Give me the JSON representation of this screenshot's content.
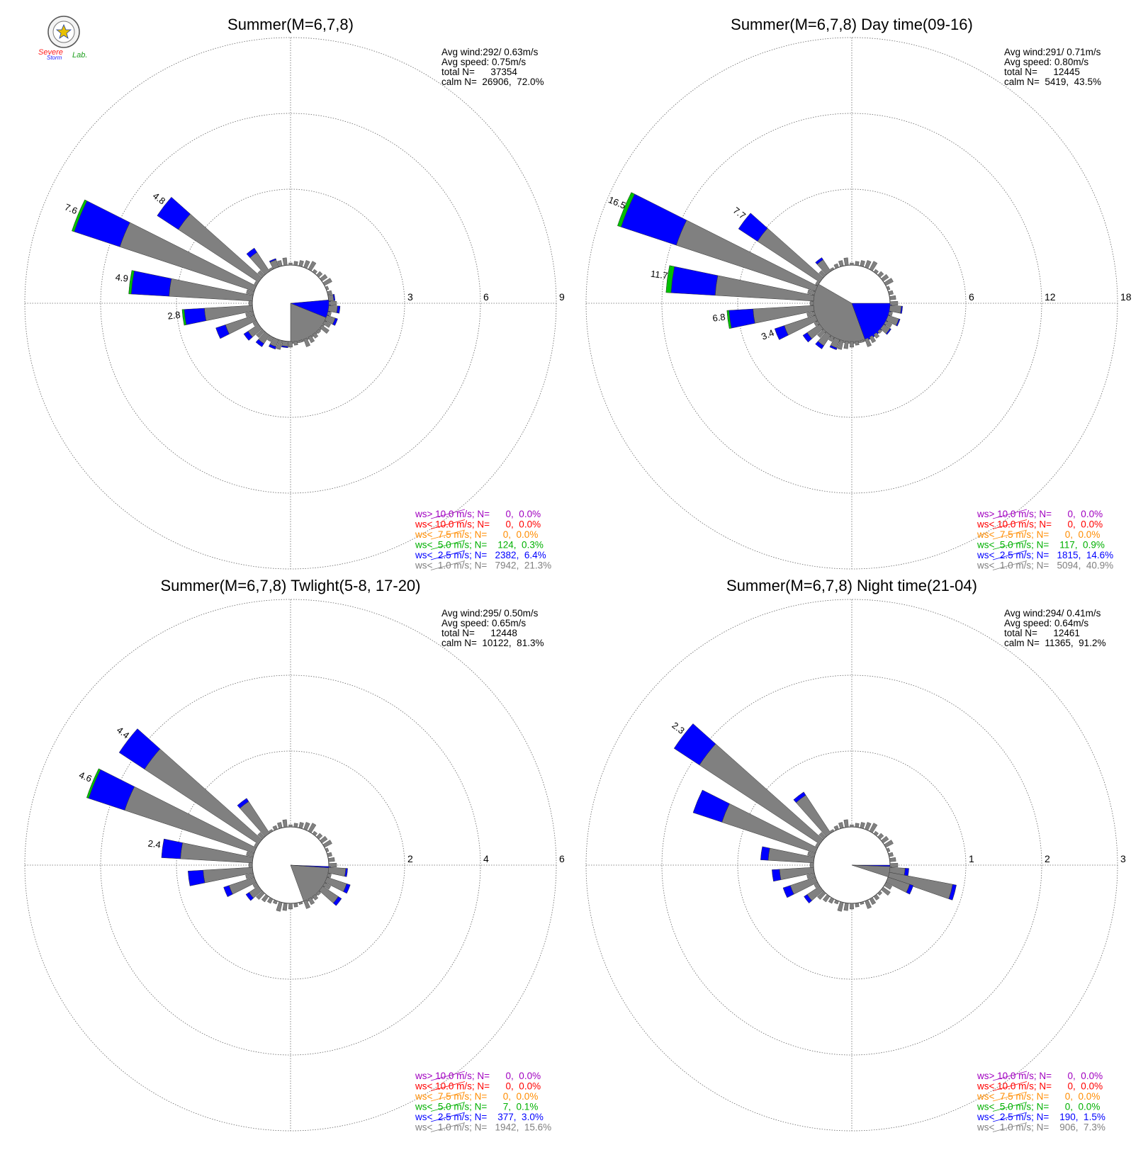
{
  "logo": {
    "lab_text_1": "Severe",
    "lab_text_2": "Storm",
    "lab_text_3": "Lab."
  },
  "colors": {
    "calm": "#808080",
    "ws1": "#808080",
    "ws2": "#0000ff",
    "ws3": "#00c000",
    "ws4": "#ff8c00",
    "ws5": "#ff0000",
    "ws6": "#a000c0"
  },
  "chart_data": [
    {
      "type": "windrose",
      "title": "Summer(M=6,7,8)",
      "stats": [
        "Avg wind:292/ 0.63m/s",
        "Avg speed: 0.75m/s",
        "total N=      37354",
        "calm N=  26906,  72.0%"
      ],
      "ring_labels": [
        "3",
        "6",
        "9"
      ],
      "rmax": 9,
      "calm_sector": [
        95,
        180
      ],
      "calm_sector_value": 1.5,
      "sectors": [
        {
          "dir": 292.5,
          "gray": 5.6,
          "blue": 1.9,
          "green": 0.1,
          "label": "7.6"
        },
        {
          "dir": 307.5,
          "gray": 3.8,
          "blue": 1.0,
          "label": "4.8"
        },
        {
          "dir": 277.5,
          "gray": 3.3,
          "blue": 1.5,
          "green": 0.1,
          "label": "4.9"
        },
        {
          "dir": 262.5,
          "gray": 1.9,
          "blue": 0.8,
          "green": 0.05,
          "label": "2.8"
        },
        {
          "dir": 322.5,
          "gray": 0.9,
          "blue": 0.2
        },
        {
          "dir": 247.5,
          "gray": 1.2,
          "blue": 0.4
        },
        {
          "dir": 232.5,
          "gray": 0.5,
          "blue": 0.2
        },
        {
          "dir": 217.5,
          "gray": 0.4,
          "blue": 0.15
        },
        {
          "dir": 337.5,
          "gray": 0.3,
          "blue": 0.05
        },
        {
          "dir": 82.5,
          "gray": 0.2,
          "blue": 0.05
        },
        {
          "dir": 97.5,
          "gray": 0.35,
          "blue": 0.1
        },
        {
          "dir": 112.5,
          "gray": 0.35,
          "blue": 0.1
        },
        {
          "dir": 202.5,
          "gray": 0.3,
          "blue": 0.1
        },
        {
          "dir": 187.5,
          "gray": 0.2,
          "blue": 0.05
        }
      ],
      "legend": [
        {
          "prefix": "ws>",
          "speed": "10.0 m/s; N=",
          "count": "0",
          "pct": "0.0%",
          "color": "#a000c0"
        },
        {
          "prefix": "ws<",
          "speed": "10.0 m/s; N=",
          "count": "0",
          "pct": "0.0%",
          "color": "#ff0000"
        },
        {
          "prefix": "ws<",
          "speed": " 7.5 m/s; N=",
          "count": "0",
          "pct": "0.0%",
          "color": "#ff8c00"
        },
        {
          "prefix": "ws<",
          "speed": " 5.0 m/s; N=",
          "count": "124",
          "pct": "0.3%",
          "color": "#00b000"
        },
        {
          "prefix": "ws<",
          "speed": " 2.5 m/s; N=",
          "count": "2382",
          "pct": "6.4%",
          "color": "#0000ff"
        },
        {
          "prefix": "ws<",
          "speed": " 1.0 m/s; N=",
          "count": "7942",
          "pct": "21.3%",
          "color": "#808080"
        }
      ]
    },
    {
      "type": "windrose",
      "title": "Summer(M=6,7,8) Day time(09-16)",
      "stats": [
        "Avg wind:291/ 0.71m/s",
        "Avg speed: 0.80m/s",
        "total N=      12445",
        "calm N=  5419,  43.5%"
      ],
      "ring_labels": [
        "6",
        "12",
        "18"
      ],
      "rmax": 18,
      "calm_sector": [
        90,
        160
      ],
      "calm_sector_value": 3.6,
      "calm_gray_sector": [
        160,
        300
      ],
      "calm_gray_value": 3.6,
      "sectors": [
        {
          "dir": 292.5,
          "gray": 11.6,
          "blue": 4.6,
          "green": 0.3,
          "label": "16.5"
        },
        {
          "dir": 307.5,
          "gray": 5.9,
          "blue": 1.8,
          "label": "7.7"
        },
        {
          "dir": 277.5,
          "gray": 7.8,
          "blue": 3.5,
          "green": 0.4,
          "label": "11.7"
        },
        {
          "dir": 262.5,
          "gray": 4.8,
          "blue": 1.9,
          "green": 0.1,
          "label": "6.8"
        },
        {
          "dir": 247.5,
          "gray": 2.6,
          "blue": 0.8,
          "label": "3.4"
        },
        {
          "dir": 322.5,
          "gray": 1.1,
          "blue": 0.2
        },
        {
          "dir": 232.5,
          "gray": 1.2,
          "blue": 0.4
        },
        {
          "dir": 217.5,
          "gray": 1.0,
          "blue": 0.3
        },
        {
          "dir": 202.5,
          "gray": 0.7,
          "blue": 0.15
        },
        {
          "dir": 97.5,
          "gray": 0.9,
          "blue": 0.1
        },
        {
          "dir": 112.5,
          "gray": 0.9,
          "blue": 0.1
        },
        {
          "dir": 127.5,
          "gray": 0.6,
          "blue": 0.1
        }
      ],
      "legend": [
        {
          "prefix": "ws>",
          "speed": "10.0 m/s; N=",
          "count": "0",
          "pct": "0.0%",
          "color": "#a000c0"
        },
        {
          "prefix": "ws<",
          "speed": "10.0 m/s; N=",
          "count": "0",
          "pct": "0.0%",
          "color": "#ff0000"
        },
        {
          "prefix": "ws<",
          "speed": " 7.5 m/s; N=",
          "count": "0",
          "pct": "0.0%",
          "color": "#ff8c00"
        },
        {
          "prefix": "ws<",
          "speed": " 5.0 m/s; N=",
          "count": "117",
          "pct": "0.9%",
          "color": "#00b000"
        },
        {
          "prefix": "ws<",
          "speed": " 2.5 m/s; N=",
          "count": "1815",
          "pct": "14.6%",
          "color": "#0000ff"
        },
        {
          "prefix": "ws<",
          "speed": " 1.0 m/s; N=",
          "count": "5094",
          "pct": "40.9%",
          "color": "#808080"
        }
      ]
    },
    {
      "type": "windrose",
      "title": "Summer(M=6,7,8) Twlight(5-8, 17-20)",
      "stats": [
        "Avg wind:295/ 0.50m/s",
        "Avg speed: 0.65m/s",
        "total N=      12448",
        "calm N=  10122,  81.3%"
      ],
      "ring_labels": [
        "2",
        "4",
        "6"
      ],
      "rmax": 6,
      "calm_sector": [
        92,
        94
      ],
      "calm_sector_value": 1.0,
      "calm_gray_sector": [
        94,
        160
      ],
      "calm_gray_value": 1.0,
      "sectors": [
        {
          "dir": 307.5,
          "gray": 3.6,
          "blue": 0.8,
          "label": "4.4"
        },
        {
          "dir": 292.5,
          "gray": 3.6,
          "blue": 1.0,
          "green": 0.05,
          "label": "4.6"
        },
        {
          "dir": 277.5,
          "gray": 1.9,
          "blue": 0.5,
          "label": "2.4"
        },
        {
          "dir": 262.5,
          "gray": 1.3,
          "blue": 0.4
        },
        {
          "dir": 322.5,
          "gray": 1.0,
          "blue": 0.1
        },
        {
          "dir": 247.5,
          "gray": 0.7,
          "blue": 0.15
        },
        {
          "dir": 232.5,
          "gray": 0.3,
          "blue": 0.1
        },
        {
          "dir": 97.5,
          "gray": 0.45,
          "blue": 0.05
        },
        {
          "dir": 112.5,
          "gray": 0.55,
          "blue": 0.1
        },
        {
          "dir": 127.5,
          "gray": 0.5,
          "blue": 0.1
        }
      ],
      "legend": [
        {
          "prefix": "ws>",
          "speed": "10.0 m/s; N=",
          "count": "0",
          "pct": "0.0%",
          "color": "#a000c0"
        },
        {
          "prefix": "ws<",
          "speed": "10.0 m/s; N=",
          "count": "0",
          "pct": "0.0%",
          "color": "#ff0000"
        },
        {
          "prefix": "ws<",
          "speed": " 7.5 m/s; N=",
          "count": "0",
          "pct": "0.0%",
          "color": "#ff8c00"
        },
        {
          "prefix": "ws<",
          "speed": " 5.0 m/s; N=",
          "count": "7",
          "pct": "0.1%",
          "color": "#00b000"
        },
        {
          "prefix": "ws<",
          "speed": " 2.5 m/s; N=",
          "count": "377",
          "pct": "3.0%",
          "color": "#0000ff"
        },
        {
          "prefix": "ws<",
          "speed": " 1.0 m/s; N=",
          "count": "1942",
          "pct": "15.6%",
          "color": "#808080"
        }
      ]
    },
    {
      "type": "windrose",
      "title": "Summer(M=6,7,8) Night time(21-04)",
      "stats": [
        "Avg wind:294/ 0.41m/s",
        "Avg speed: 0.64m/s",
        "total N=      12461",
        "calm N=  11365,  91.2%"
      ],
      "ring_labels": [
        "1",
        "2",
        "3"
      ],
      "rmax": 3,
      "calm_sector": [
        90,
        92
      ],
      "calm_sector_value": 0.5,
      "calm_gray_sector": [
        92,
        108
      ],
      "calm_gray_value": 0.5,
      "sectors": [
        {
          "dir": 307.5,
          "gray": 1.9,
          "blue": 0.4,
          "label": "2.3"
        },
        {
          "dir": 292.5,
          "gray": 1.3,
          "blue": 0.4
        },
        {
          "dir": 322.5,
          "gray": 0.6,
          "blue": 0.05
        },
        {
          "dir": 277.5,
          "gray": 0.6,
          "blue": 0.1
        },
        {
          "dir": 262.5,
          "gray": 0.45,
          "blue": 0.1
        },
        {
          "dir": 247.5,
          "gray": 0.35,
          "blue": 0.1
        },
        {
          "dir": 232.5,
          "gray": 0.2,
          "blue": 0.05
        },
        {
          "dir": 97.5,
          "gray": 0.2,
          "blue": 0.05
        },
        {
          "dir": 105,
          "gray": 0.85,
          "blue": 0.05
        },
        {
          "dir": 112.5,
          "gray": 0.3,
          "blue": 0.05
        }
      ],
      "legend": [
        {
          "prefix": "ws>",
          "speed": "10.0 m/s; N=",
          "count": "0",
          "pct": "0.0%",
          "color": "#a000c0"
        },
        {
          "prefix": "ws<",
          "speed": "10.0 m/s; N=",
          "count": "0",
          "pct": "0.0%",
          "color": "#ff0000"
        },
        {
          "prefix": "ws<",
          "speed": " 7.5 m/s; N=",
          "count": "0",
          "pct": "0.0%",
          "color": "#ff8c00"
        },
        {
          "prefix": "ws<",
          "speed": " 5.0 m/s; N=",
          "count": "0",
          "pct": "0.0%",
          "color": "#00b000"
        },
        {
          "prefix": "ws<",
          "speed": " 2.5 m/s; N=",
          "count": "190",
          "pct": "1.5%",
          "color": "#0000ff"
        },
        {
          "prefix": "ws<",
          "speed": " 1.0 m/s; N=",
          "count": "906",
          "pct": "7.3%",
          "color": "#808080"
        }
      ]
    }
  ]
}
